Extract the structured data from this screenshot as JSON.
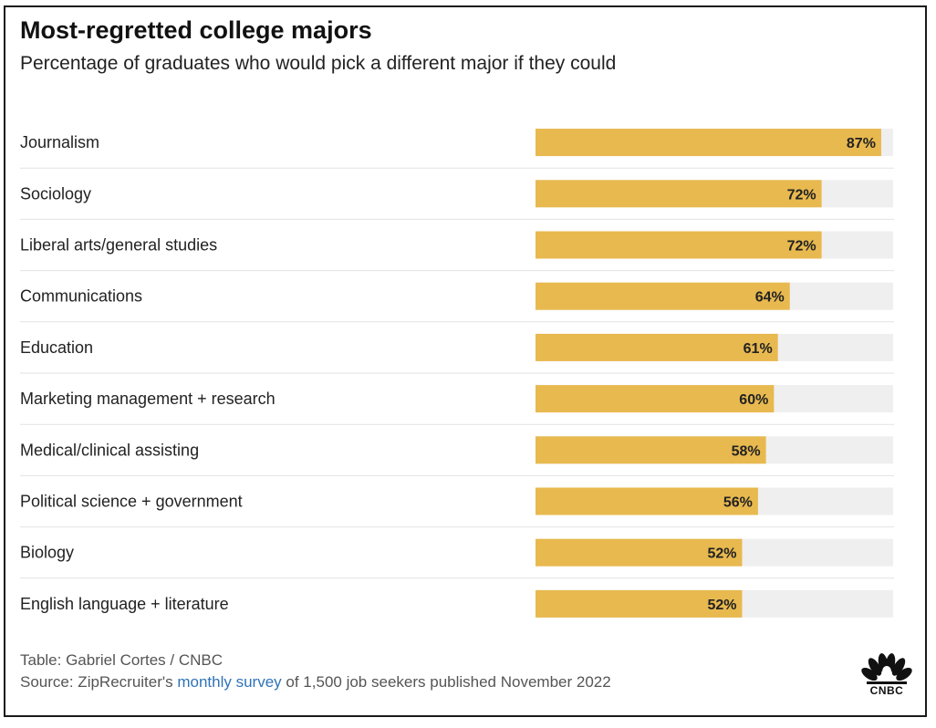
{
  "header": {
    "title": "Most-regretted college majors",
    "subtitle": "Percentage of graduates who would pick a different major if they could"
  },
  "colors": {
    "bar": "#e8b94f",
    "track": "#efefef",
    "divider": "#e2e2e2",
    "link": "#2f73b8"
  },
  "chart_data": {
    "type": "bar",
    "orientation": "horizontal",
    "title": "Most-regretted college majors",
    "subtitle": "Percentage of graduates who would pick a different major if they could",
    "categories": [
      "Journalism",
      "Sociology",
      "Liberal arts/general studies",
      "Communications",
      "Education",
      "Marketing management + research",
      "Medical/clinical assisting",
      "Political science + government",
      "Biology",
      "English language + literature"
    ],
    "values": [
      87,
      72,
      72,
      64,
      61,
      60,
      58,
      56,
      52,
      52
    ],
    "value_labels": [
      "87%",
      "72%",
      "72%",
      "64%",
      "61%",
      "60%",
      "58%",
      "56%",
      "52%",
      "52%"
    ],
    "unit": "%",
    "xlim": [
      0,
      90
    ],
    "grid": false,
    "legend": "none"
  },
  "footer": {
    "credit": "Table: Gabriel Cortes / CNBC",
    "source_prefix": "Source: ZipRecruiter's ",
    "source_link": "monthly survey",
    "source_suffix": " of 1,500 job seekers published November 2022",
    "logo_icon": "cnbc-peacock-icon",
    "logo_text": "CNBC"
  }
}
